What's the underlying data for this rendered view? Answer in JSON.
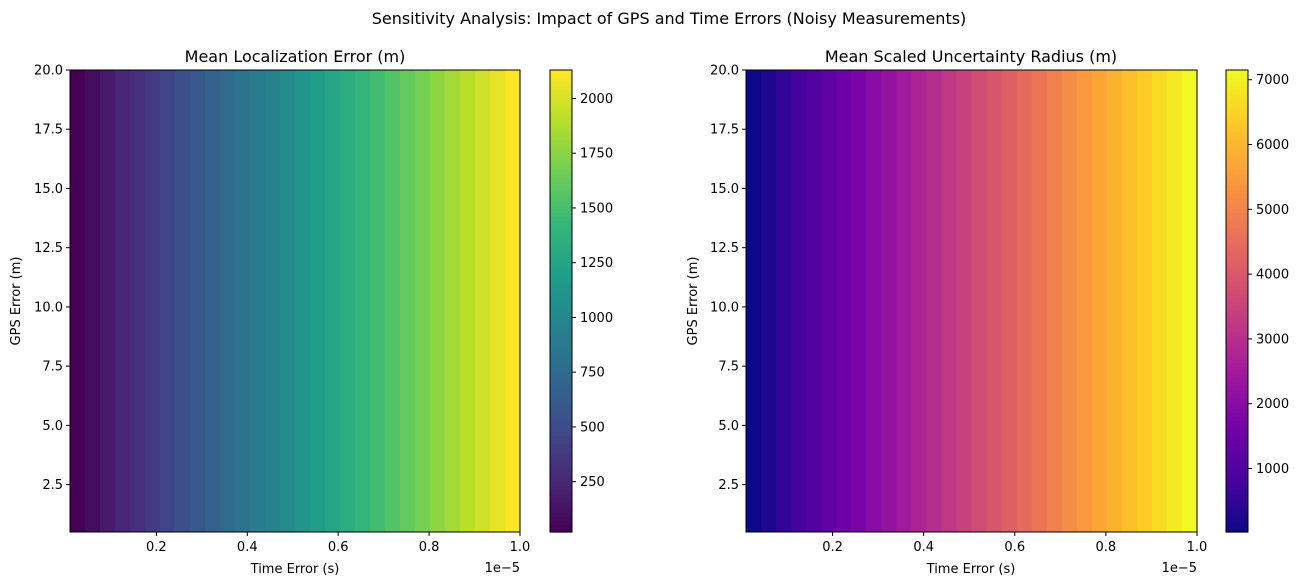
{
  "figure": {
    "suptitle": "Sensitivity Analysis: Impact of GPS and Time Errors (Noisy Measurements)"
  },
  "chart_data": [
    {
      "type": "heatmap",
      "title": "Mean Localization Error (m)",
      "xlabel": "Time Error (s)",
      "ylabel": "GPS Error (m)",
      "x_offset_label": "1e−5",
      "xlim": [
        1e-07,
        1e-05
      ],
      "ylim": [
        0.5,
        20
      ],
      "xticks": [
        0.2,
        0.4,
        0.6,
        0.8,
        1.0
      ],
      "xtick_labels": [
        "0.2",
        "0.4",
        "0.6",
        "0.8",
        "1.0"
      ],
      "yticks": [
        2.5,
        5.0,
        7.5,
        10.0,
        12.5,
        15.0,
        17.5,
        20.0
      ],
      "ytick_labels": [
        "2.5",
        "5.0",
        "7.5",
        "10.0",
        "12.5",
        "15.0",
        "17.5",
        "20.0"
      ],
      "colormap": "viridis",
      "colorbar_range": [
        20,
        2130
      ],
      "colorbar_ticks": [
        250,
        500,
        750,
        1000,
        1250,
        1500,
        1750,
        2000
      ],
      "colorbar_tick_labels": [
        "250",
        "500",
        "750",
        "1000",
        "1250",
        "1500",
        "1750",
        "2000"
      ],
      "columns": 30,
      "column_values": [
        20,
        93,
        166,
        238,
        311,
        384,
        457,
        529,
        602,
        675,
        748,
        820,
        893,
        966,
        1039,
        1111,
        1184,
        1257,
        1330,
        1402,
        1475,
        1548,
        1621,
        1693,
        1766,
        1839,
        1912,
        1984,
        2057,
        2130
      ],
      "note_rows": "values constant along GPS Error axis"
    },
    {
      "type": "heatmap",
      "title": "Mean Scaled Uncertainty Radius (m)",
      "xlabel": "Time Error (s)",
      "ylabel": "GPS Error (m)",
      "x_offset_label": "1e−5",
      "xlim": [
        1e-07,
        1e-05
      ],
      "ylim": [
        0.5,
        20
      ],
      "xticks": [
        0.2,
        0.4,
        0.6,
        0.8,
        1.0
      ],
      "xtick_labels": [
        "0.2",
        "0.4",
        "0.6",
        "0.8",
        "1.0"
      ],
      "yticks": [
        2.5,
        5.0,
        7.5,
        10.0,
        12.5,
        15.0,
        17.5,
        20.0
      ],
      "ytick_labels": [
        "2.5",
        "5.0",
        "7.5",
        "10.0",
        "12.5",
        "15.0",
        "17.5",
        "20.0"
      ],
      "colormap": "plasma",
      "colorbar_range": [
        20,
        7150
      ],
      "colorbar_ticks": [
        1000,
        2000,
        3000,
        4000,
        5000,
        6000,
        7000
      ],
      "colorbar_tick_labels": [
        "1000",
        "2000",
        "3000",
        "4000",
        "5000",
        "6000",
        "7000"
      ],
      "columns": 30,
      "column_values": [
        20,
        266,
        512,
        757,
        1003,
        1249,
        1495,
        1741,
        1986,
        2232,
        2478,
        2724,
        2970,
        3215,
        3461,
        3707,
        3953,
        4199,
        4444,
        4690,
        4936,
        5182,
        5428,
        5673,
        5919,
        6165,
        6411,
        6657,
        6902,
        7150
      ],
      "note_rows": "values constant along GPS Error axis"
    }
  ]
}
